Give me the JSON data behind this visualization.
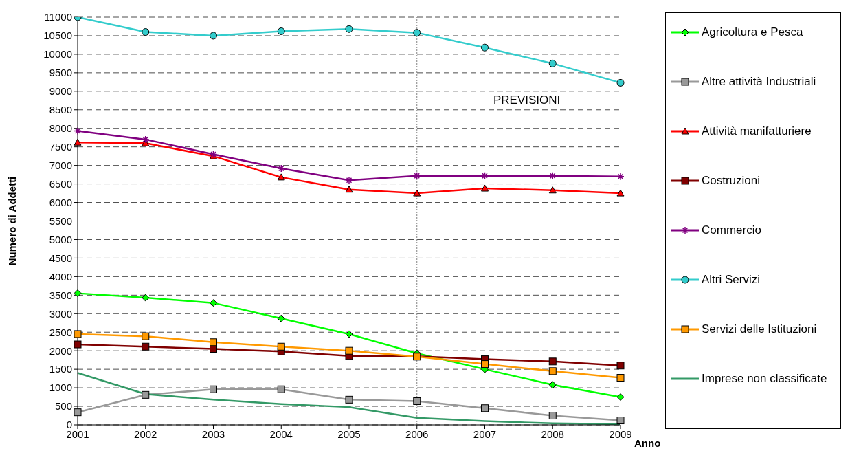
{
  "chart_data": {
    "type": "line",
    "xlabel": "Anno",
    "ylabel": "Numero di  Addetti",
    "categories": [
      "2001",
      "2002",
      "2003",
      "2004",
      "2005",
      "2006",
      "2007",
      "2008",
      "2009"
    ],
    "ylim": [
      0,
      11000
    ],
    "yticks": [
      0,
      500,
      1000,
      1500,
      2000,
      2500,
      3000,
      3500,
      4000,
      4500,
      5000,
      5500,
      6000,
      6500,
      7000,
      7500,
      8000,
      8500,
      9000,
      9500,
      10000,
      10500,
      11000
    ],
    "grid": "y",
    "legend": "right",
    "annotations": [
      "PREVISIONI"
    ],
    "ref_lines": [
      {
        "axis": "x",
        "value": "2006",
        "line_style": "dotted",
        "color": "#808080"
      }
    ],
    "series": [
      {
        "name": "Agricoltura e Pesca",
        "color": "#00ff00",
        "marker": "diamond",
        "values": [
          3550,
          3430,
          3290,
          2870,
          2450,
          1930,
          1500,
          1080,
          750
        ]
      },
      {
        "name": "Altre attività Industriali",
        "color": "#999999",
        "marker": "square",
        "values": [
          340,
          810,
          960,
          960,
          680,
          640,
          450,
          250,
          120
        ]
      },
      {
        "name": "Attività manifatturiere",
        "color": "#ff0000",
        "marker": "triangle",
        "values": [
          7620,
          7600,
          7250,
          6680,
          6350,
          6250,
          6380,
          6330,
          6250
        ]
      },
      {
        "name": "Costruzioni",
        "color": "#800000",
        "marker": "square",
        "values": [
          2170,
          2110,
          2050,
          1980,
          1860,
          1850,
          1770,
          1710,
          1600
        ]
      },
      {
        "name": "Commercio",
        "color": "#800080",
        "marker": "cross",
        "values": [
          7930,
          7700,
          7300,
          6920,
          6600,
          6720,
          6720,
          6720,
          6700
        ]
      },
      {
        "name": "Altri Servizi",
        "color": "#33cccc",
        "marker": "circle",
        "values": [
          11000,
          10600,
          10500,
          10620,
          10680,
          10580,
          10180,
          9750,
          9230
        ]
      },
      {
        "name": "Servizi delle Istituzioni",
        "color": "#ff9900",
        "marker": "square",
        "values": [
          2450,
          2390,
          2230,
          2110,
          2000,
          1840,
          1640,
          1450,
          1270
        ]
      },
      {
        "name": "Imprese non classificate",
        "color": "#339966",
        "marker": "none",
        "values": [
          1400,
          830,
          680,
          560,
          480,
          190,
          100,
          40,
          20
        ]
      }
    ]
  }
}
